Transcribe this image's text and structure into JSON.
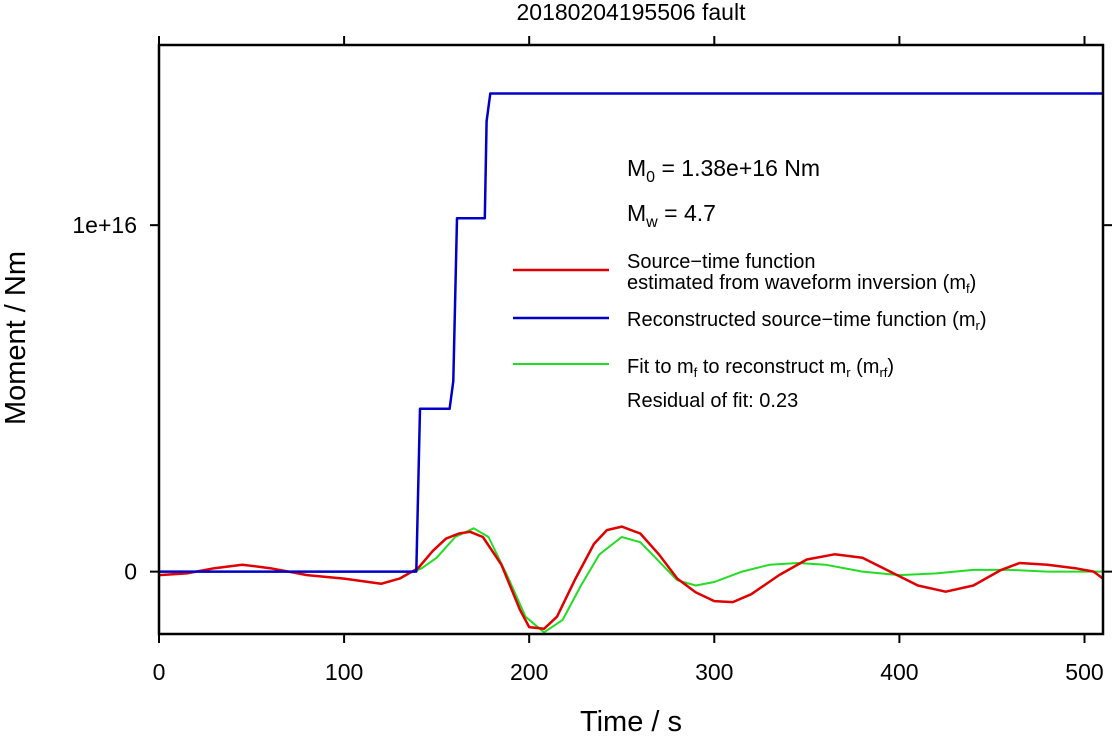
{
  "chart_data": {
    "type": "line",
    "title": "20180204195506 fault",
    "xlabel": "Time / s",
    "ylabel": "Moment / Nm",
    "xlim": [
      0,
      510
    ],
    "ylim": [
      -1800000000000000.0,
      1.52e+16
    ],
    "x_ticks": [
      0,
      100,
      200,
      300,
      400,
      500
    ],
    "x_tick_labels": [
      "0",
      "100",
      "200",
      "300",
      "400",
      "500"
    ],
    "y_ticks": [
      0,
      1e+16
    ],
    "y_tick_labels": [
      "0",
      "1e+16"
    ],
    "grid": false,
    "legend_position": "right",
    "annotations": {
      "m0_label": "M",
      "m0_sub": "0",
      "m0_value": " = 1.38e+16 Nm",
      "mw_label": "M",
      "mw_sub": "w",
      "mw_value": " = 4.7",
      "residual": "Residual of fit: 0.23"
    },
    "legend": [
      {
        "line1": "Source−time function",
        "line2_pre": "estimated from waveform inversion (m",
        "line2_sub": "f",
        "line2_post": ")",
        "color": "#e00000"
      },
      {
        "pre": "Reconstructed source−time function (m",
        "sub": "r",
        "post": ")",
        "color": "#0000c8"
      },
      {
        "pre": "Fit to m",
        "sub1": "f",
        "mid": " to reconstruct m",
        "sub2": "r",
        "mid2": " (m",
        "sub3": "rf",
        "post": ")",
        "color": "#22dd22"
      }
    ],
    "series": [
      {
        "key": "mf",
        "color": "#e00000",
        "x": [
          0,
          15,
          30,
          45,
          60,
          80,
          100,
          120,
          130,
          140,
          148,
          155,
          162,
          168,
          175,
          185,
          195,
          200,
          208,
          215,
          225,
          235,
          242,
          250,
          260,
          270,
          280,
          290,
          300,
          310,
          320,
          335,
          350,
          365,
          380,
          395,
          410,
          425,
          440,
          455,
          465,
          480,
          495,
          505,
          510
        ],
        "y": [
          -100000000000000.0,
          -50000000000000.0,
          100000000000000.0,
          200000000000000.0,
          100000000000000.0,
          -100000000000000.0,
          -200000000000000.0,
          -350000000000000.0,
          -200000000000000.0,
          100000000000000.0,
          600000000000000.0,
          950000000000000.0,
          1100000000000000.0,
          1150000000000000.0,
          1000000000000000.0,
          200000000000000.0,
          -1100000000000000.0,
          -1600000000000000.0,
          -1650000000000000.0,
          -1300000000000000.0,
          -200000000000000.0,
          800000000000000.0,
          1200000000000000.0,
          1300000000000000.0,
          1100000000000000.0,
          500000000000000.0,
          -200000000000000.0,
          -600000000000000.0,
          -850000000000000.0,
          -880000000000000.0,
          -650000000000000.0,
          -100000000000000.0,
          350000000000000.0,
          500000000000000.0,
          400000000000000.0,
          0.0,
          -400000000000000.0,
          -580000000000000.0,
          -400000000000000.0,
          50000000000000.0,
          250000000000000.0,
          200000000000000.0,
          100000000000000.0,
          0.0,
          -200000000000000.0
        ]
      },
      {
        "key": "mr",
        "color": "#0000c8",
        "x": [
          0,
          139,
          141,
          143,
          157,
          159,
          161,
          176,
          177,
          179,
          510
        ],
        "y": [
          0,
          0,
          4700000000000000.0,
          4700000000000000.0,
          4700000000000000.0,
          5500000000000000.0,
          1.02e+16,
          1.02e+16,
          1.3e+16,
          1.38e+16,
          1.38e+16
        ]
      },
      {
        "key": "mrf",
        "color": "#22dd22",
        "x": [
          0,
          138,
          142,
          150,
          160,
          170,
          178,
          188,
          198,
          208,
          218,
          228,
          238,
          250,
          260,
          270,
          280,
          290,
          300,
          315,
          330,
          345,
          360,
          380,
          400,
          420,
          440,
          460,
          480,
          500,
          510
        ],
        "y": [
          0,
          0,
          100000000000000.0,
          400000000000000.0,
          1000000000000000.0,
          1250000000000000.0,
          1000000000000000.0,
          -100000000000000.0,
          -1300000000000000.0,
          -1750000000000000.0,
          -1400000000000000.0,
          -400000000000000.0,
          500000000000000.0,
          1000000000000000.0,
          850000000000000.0,
          300000000000000.0,
          -250000000000000.0,
          -400000000000000.0,
          -300000000000000.0,
          0.0,
          200000000000000.0,
          250000000000000.0,
          200000000000000.0,
          0.0,
          -100000000000000.0,
          -50000000000000.0,
          50000000000000.0,
          50000000000000.0,
          0.0,
          0.0,
          0.0
        ]
      }
    ]
  }
}
